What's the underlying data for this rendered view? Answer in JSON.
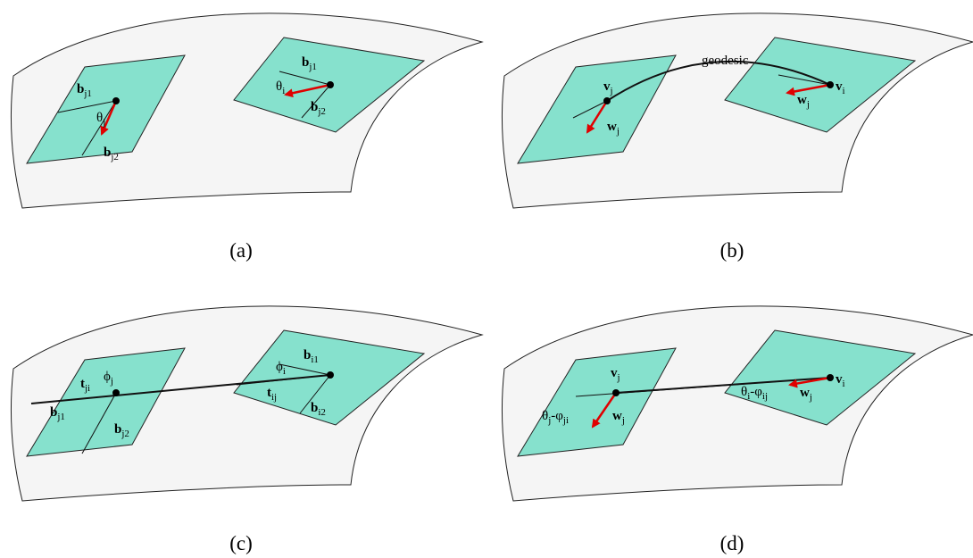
{
  "panels": [
    {
      "caption": "(a)",
      "labels": [
        {
          "parts": [
            {
              "text": "b",
              "bold": true
            },
            {
              "text": "j1",
              "sub": true
            }
          ]
        },
        {
          "parts": [
            {
              "text": "θ"
            },
            {
              "text": "j",
              "sub": true
            }
          ]
        },
        {
          "parts": [
            {
              "text": "b",
              "bold": true
            },
            {
              "text": "j2",
              "sub": true
            }
          ]
        },
        {
          "parts": [
            {
              "text": "b",
              "bold": true
            },
            {
              "text": "j1",
              "sub": true
            }
          ]
        },
        {
          "parts": [
            {
              "text": "θ"
            },
            {
              "text": "i",
              "sub": true
            }
          ]
        },
        {
          "parts": [
            {
              "text": "b",
              "bold": true
            },
            {
              "text": "j2",
              "sub": true
            }
          ]
        }
      ]
    },
    {
      "caption": "(b)",
      "labels": [
        {
          "parts": [
            {
              "text": "geodesic"
            }
          ]
        },
        {
          "parts": [
            {
              "text": "v",
              "bold": true
            },
            {
              "text": "j",
              "sub": true
            }
          ]
        },
        {
          "parts": [
            {
              "text": "w",
              "bold": true
            },
            {
              "text": "j",
              "sub": true
            }
          ]
        },
        {
          "parts": [
            {
              "text": "v",
              "bold": true
            },
            {
              "text": "i",
              "sub": true
            }
          ]
        },
        {
          "parts": [
            {
              "text": "w",
              "bold": true
            },
            {
              "text": "j",
              "sub": true
            }
          ]
        }
      ]
    },
    {
      "caption": "(c)",
      "labels": [
        {
          "parts": [
            {
              "text": "t",
              "bold": true
            },
            {
              "text": "ji",
              "sub": true
            }
          ]
        },
        {
          "parts": [
            {
              "text": "ϕ"
            },
            {
              "text": "j",
              "sub": true
            }
          ]
        },
        {
          "parts": [
            {
              "text": "b",
              "bold": true
            },
            {
              "text": "j1",
              "sub": true
            }
          ]
        },
        {
          "parts": [
            {
              "text": "b",
              "bold": true
            },
            {
              "text": "j2",
              "sub": true
            }
          ]
        },
        {
          "parts": [
            {
              "text": "ϕ"
            },
            {
              "text": "i",
              "sub": true
            }
          ]
        },
        {
          "parts": [
            {
              "text": "b",
              "bold": true
            },
            {
              "text": "i1",
              "sub": true
            }
          ]
        },
        {
          "parts": [
            {
              "text": "t",
              "bold": true
            },
            {
              "text": "ij",
              "sub": true
            }
          ]
        },
        {
          "parts": [
            {
              "text": "b",
              "bold": true
            },
            {
              "text": "i2",
              "sub": true
            }
          ]
        }
      ]
    },
    {
      "caption": "(d)",
      "labels": [
        {
          "parts": [
            {
              "text": "v",
              "bold": true
            },
            {
              "text": "j",
              "sub": true
            }
          ]
        },
        {
          "parts": [
            {
              "text": "θ"
            },
            {
              "text": "j",
              "sub": true
            },
            {
              "text": "-φ"
            },
            {
              "text": "ji",
              "sub": true
            }
          ]
        },
        {
          "parts": [
            {
              "text": "w",
              "bold": true
            },
            {
              "text": "j",
              "sub": true
            }
          ]
        },
        {
          "parts": [
            {
              "text": "v",
              "bold": true
            },
            {
              "text": "i",
              "sub": true
            }
          ]
        },
        {
          "parts": [
            {
              "text": "θ"
            },
            {
              "text": "i",
              "sub": true
            },
            {
              "text": "-φ"
            },
            {
              "text": "ij",
              "sub": true
            }
          ]
        },
        {
          "parts": [
            {
              "text": "w",
              "bold": true
            },
            {
              "text": "j",
              "sub": true
            }
          ]
        }
      ]
    }
  ]
}
